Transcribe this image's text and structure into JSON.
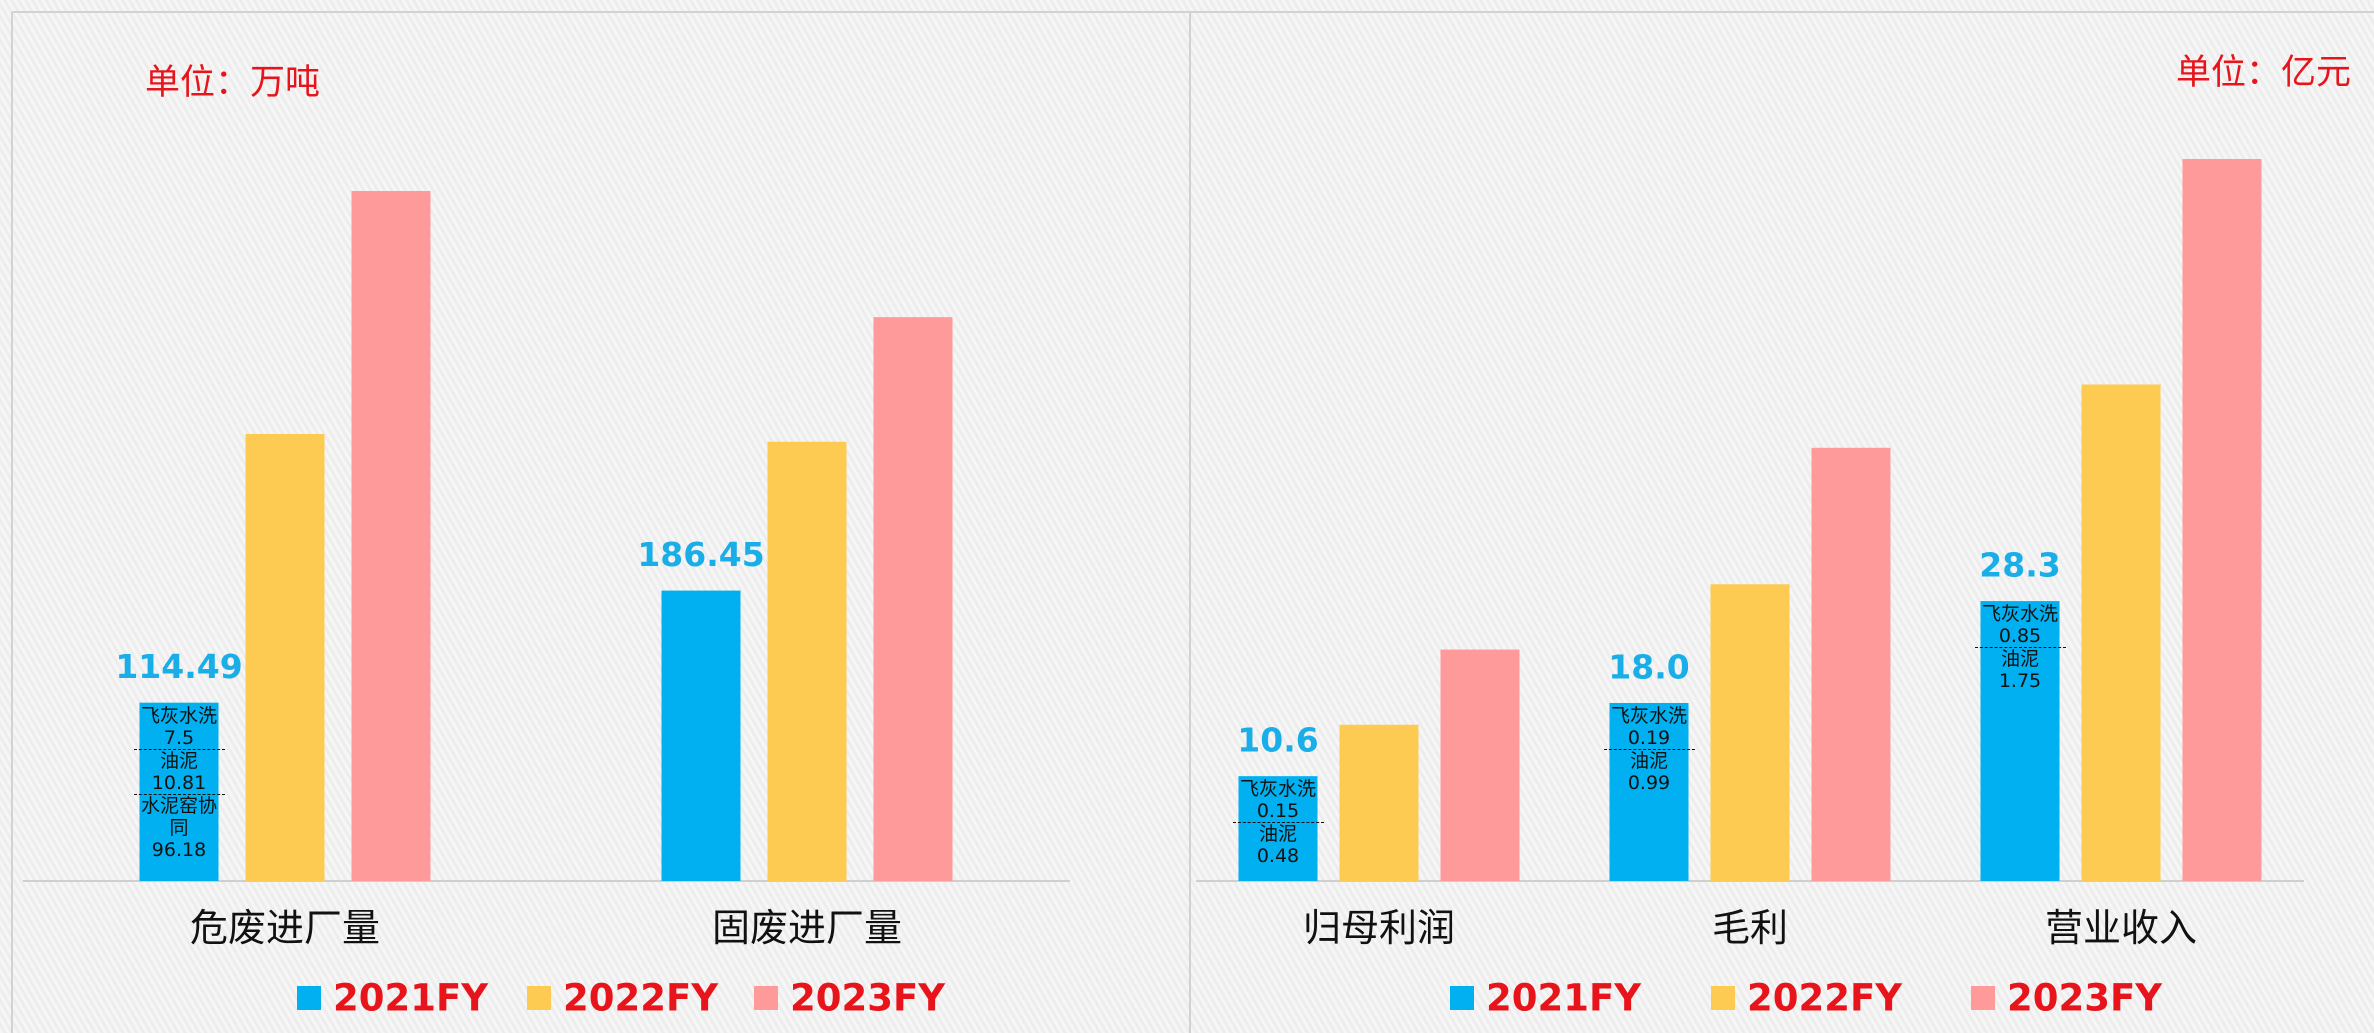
{
  "chart_data": [
    {
      "type": "bar",
      "unit_label": "单位：万吨",
      "categories": [
        "危废进厂量",
        "固废进厂量"
      ],
      "series": [
        {
          "name": "2021FY",
          "color": "#00b0f0",
          "values": [
            114.49,
            186.45
          ],
          "data_labels": true,
          "breakdown": [
            [
              {
                "name": "飞灰水洗",
                "value": 7.5
              },
              {
                "name": "油泥",
                "value": 10.81
              },
              {
                "name": "水泥窑协同",
                "value": 96.18
              }
            ],
            []
          ]
        },
        {
          "name": "2022FY",
          "color": "#fdca52",
          "values": [
            287,
            282
          ]
        },
        {
          "name": "2023FY",
          "color": "#fe9a9a",
          "values": [
            443,
            362
          ]
        }
      ]
    },
    {
      "type": "bar",
      "unit_label": "单位：亿元",
      "categories": [
        "归母利润",
        "毛利",
        "营业收入"
      ],
      "series": [
        {
          "name": "2021FY",
          "color": "#00b0f0",
          "values": [
            10.6,
            18,
            28.3
          ],
          "value_labels": [
            "10.6",
            "18.0",
            "28.3"
          ],
          "data_labels": true,
          "breakdown": [
            [
              {
                "name": "飞灰水洗",
                "value": 0.15
              },
              {
                "name": "油泥",
                "value": 0.48
              }
            ],
            [
              {
                "name": "飞灰水洗",
                "value": 0.19
              },
              {
                "name": "油泥",
                "value": 0.99
              }
            ],
            [
              {
                "name": "飞灰水洗",
                "value": 0.85
              },
              {
                "name": "油泥",
                "value": 1.75
              }
            ]
          ]
        },
        {
          "name": "2022FY",
          "color": "#fdca52",
          "values": [
            15.8,
            30,
            50.2
          ]
        },
        {
          "name": "2023FY",
          "color": "#fe9a9a",
          "values": [
            23.4,
            43.8,
            73
          ]
        }
      ]
    }
  ]
}
